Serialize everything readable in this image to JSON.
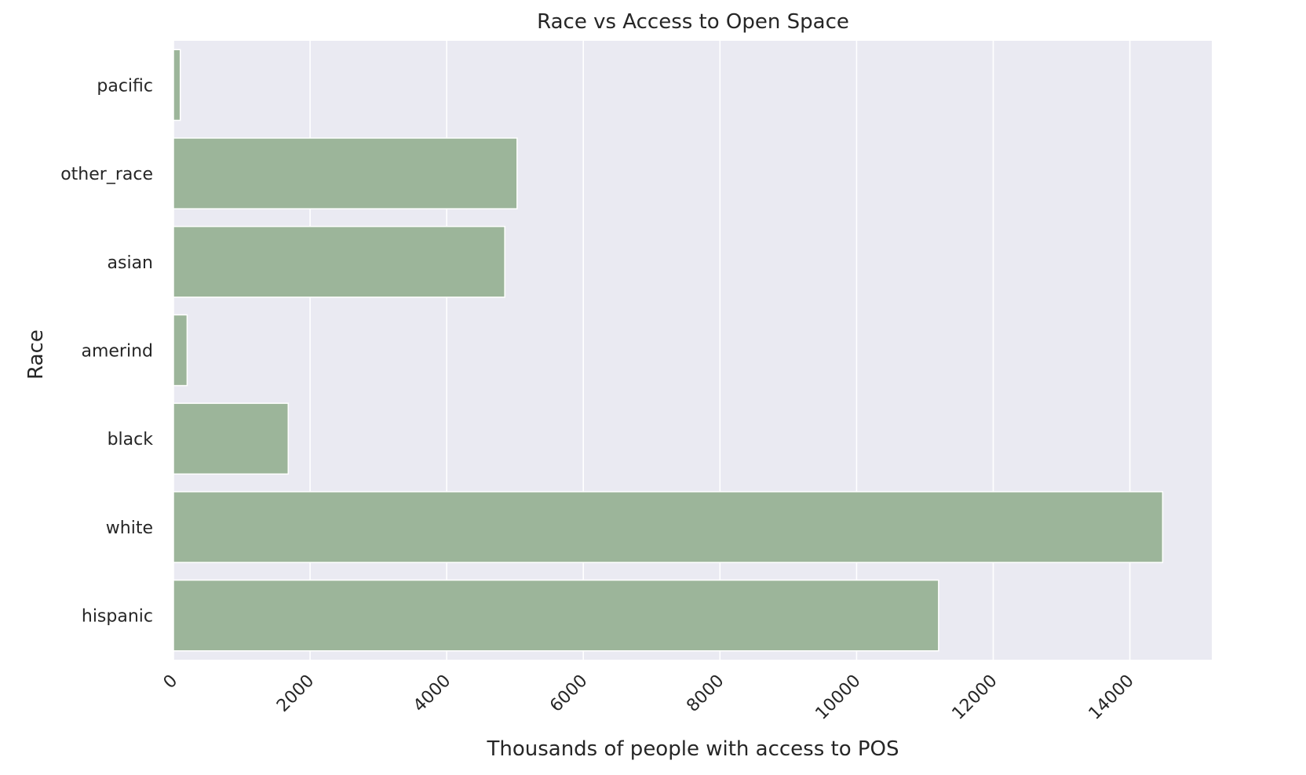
{
  "chart_data": {
    "type": "bar",
    "orientation": "horizontal",
    "title": "Race vs Access to Open Space",
    "xlabel": "Thousands of people with access to POS",
    "ylabel": "Race",
    "categories": [
      "pacific",
      "other_race",
      "asian",
      "amerind",
      "black",
      "white",
      "hispanic"
    ],
    "values": [
      100,
      5030,
      4850,
      200,
      1680,
      14480,
      11200
    ],
    "xlim": [
      0,
      15200
    ],
    "xticks": [
      0,
      2000,
      4000,
      6000,
      8000,
      10000,
      12000,
      14000
    ],
    "xtick_rotation": 45,
    "grid": true,
    "colors": {
      "bar": "#9cb59a",
      "plot_background": "#eaeaf2",
      "grid": "#ffffff"
    }
  }
}
